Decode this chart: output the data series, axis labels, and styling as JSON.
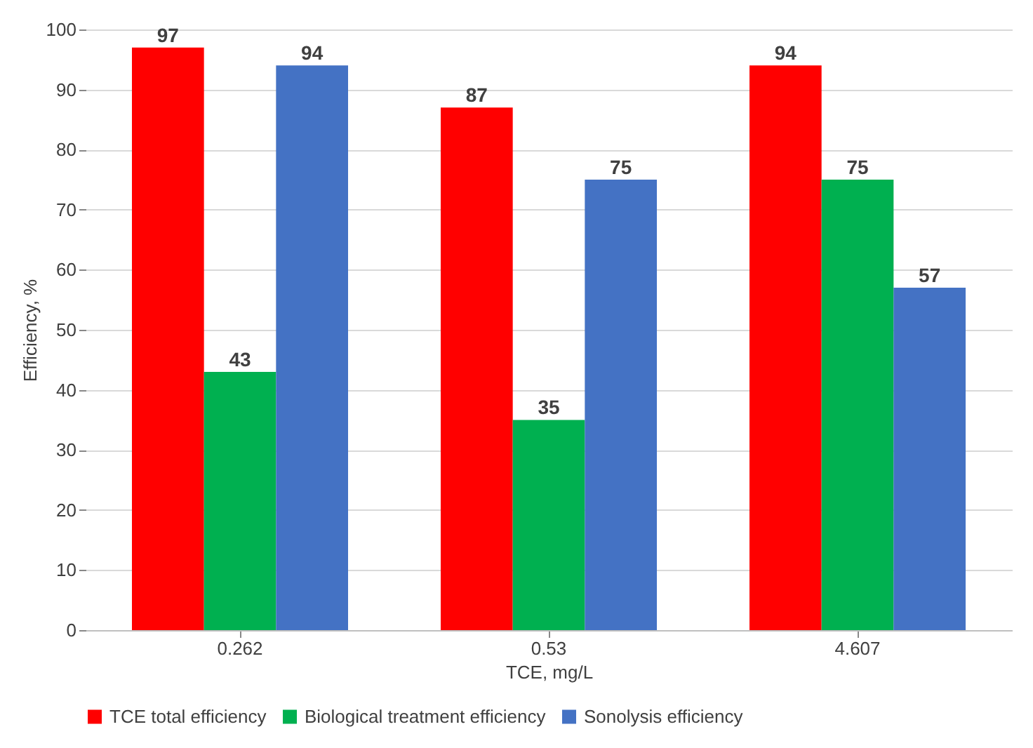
{
  "chart_data": {
    "type": "bar",
    "xlabel": "TCE, mg/L",
    "ylabel": "Efficiency, %",
    "categories": [
      "0.262",
      "0.53",
      "4.607"
    ],
    "series": [
      {
        "name": "TCE total efficiency",
        "color": "#ff0000",
        "values": [
          97,
          87,
          94
        ]
      },
      {
        "name": "Biological treatment efficiency",
        "color": "#00b050",
        "values": [
          43,
          35,
          75
        ]
      },
      {
        "name": "Sonolysis efficiency",
        "color": "#4472c4",
        "values": [
          94,
          75,
          57
        ]
      }
    ],
    "ylim": [
      0,
      100
    ],
    "yticks": [
      0,
      10,
      20,
      30,
      40,
      50,
      60,
      70,
      80,
      90,
      100
    ],
    "grid": "y",
    "legend": "bottom",
    "data_labels": true
  }
}
